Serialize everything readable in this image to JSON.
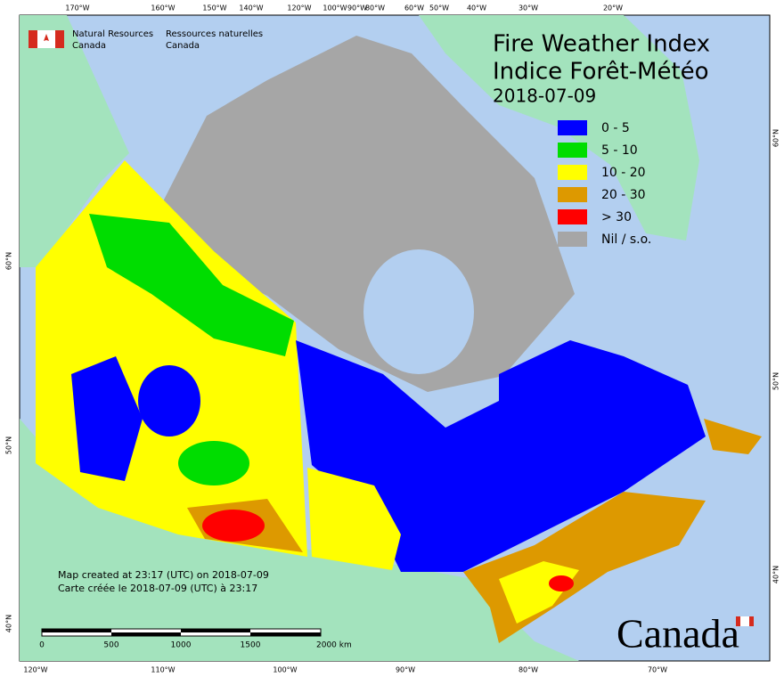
{
  "agency": {
    "english": [
      "Natural Resources",
      "Canada"
    ],
    "french": [
      "Ressources naturelles",
      "Canada"
    ]
  },
  "title": [
    "Fire Weather Index",
    "Indice Forêt-Météo"
  ],
  "date": "2018-07-09",
  "legend": [
    {
      "label": "0 - 5",
      "color": "#0000ff"
    },
    {
      "label": "5 - 10",
      "color": "#00dd00"
    },
    {
      "label": "10 - 20",
      "color": "#ffff00"
    },
    {
      "label": "20 - 30",
      "color": "#dd9900"
    },
    {
      "label": "> 30",
      "color": "#ff0000"
    },
    {
      "label": "Nil / s.o.",
      "color": "#a6a6a6"
    }
  ],
  "graticule": {
    "top": [
      "170°W",
      "160°W",
      "150°W",
      "140°W",
      "120°W",
      "100°W",
      "90°W",
      "80°W",
      "60°W",
      "50°W",
      "40°W",
      "30°W",
      "20°W"
    ],
    "bottom": [
      "120°W",
      "110°W",
      "100°W",
      "90°W",
      "80°W",
      "70°W"
    ],
    "left": [
      "60°N",
      "50°N",
      "40°N"
    ],
    "right": [
      "60°N",
      "50°N",
      "40°N"
    ]
  },
  "footnote": [
    "Map created at 23:17 (UTC) on 2018-07-09",
    "Carte créée le 2018-07-09 (UTC) à 23:17"
  ],
  "scale_bar": [
    "0",
    "500",
    "1000",
    "1500",
    "2000 km"
  ],
  "wordmark": "Canada"
}
